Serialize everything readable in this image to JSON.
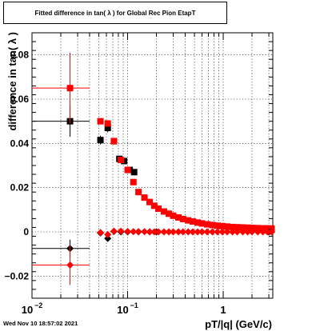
{
  "title": "Fitted difference in tan( λ ) for Global Rec Pion EtapT",
  "timestamp": "Wed Nov 10 18:57:02 2021",
  "chart_data": {
    "type": "scatter",
    "xlabel": "pT/|q| (GeV/c)",
    "ylabel": "difference in tan( λ )",
    "xscale": "log",
    "xlim": [
      0.01,
      3.3
    ],
    "ylim": [
      -0.03,
      0.09
    ],
    "grid": true,
    "x_ticks": [
      {
        "value": 0.01,
        "label": "10",
        "exp": "−2"
      },
      {
        "value": 0.1,
        "label": "10",
        "exp": "−1"
      },
      {
        "value": 1,
        "label": "1",
        "exp": ""
      }
    ],
    "y_ticks": [
      {
        "value": -0.02,
        "label": "−0.02"
      },
      {
        "value": 0,
        "label": "0"
      },
      {
        "value": 0.02,
        "label": "0.02"
      },
      {
        "value": 0.04,
        "label": "0.04"
      },
      {
        "value": 0.06,
        "label": "0.06"
      },
      {
        "value": 0.08,
        "label": "0.08"
      }
    ],
    "series": [
      {
        "color": "#000000",
        "marker": "square",
        "points": [
          {
            "x": 0.025,
            "y": 0.05,
            "xerr": [
              0.01,
              0.04
            ],
            "yerr": 0.007
          },
          {
            "x": 0.052,
            "y": 0.0415,
            "xerr": [
              0.048,
              0.056
            ],
            "yerr": 0.002
          },
          {
            "x": 0.062,
            "y": 0.047,
            "yerr": 0.002
          },
          {
            "x": 0.072,
            "y": 0.041,
            "yerr": 0.0015
          },
          {
            "x": 0.082,
            "y": 0.033
          },
          {
            "x": 0.092,
            "y": 0.032
          },
          {
            "x": 0.105,
            "y": 0.028
          },
          {
            "x": 0.117,
            "y": 0.027
          },
          {
            "x": 3.0,
            "y": 0.001
          },
          {
            "x": 3.2,
            "y": 0.001
          }
        ]
      },
      {
        "color": "#ff0000",
        "marker": "square",
        "points": [
          {
            "x": 0.025,
            "y": 0.065,
            "xerr": [
              0.01,
              0.04
            ],
            "yerr": 0.016
          },
          {
            "x": 0.052,
            "y": 0.05,
            "xerr": [
              0.048,
              0.056
            ]
          },
          {
            "x": 0.062,
            "y": 0.049
          },
          {
            "x": 0.072,
            "y": 0.041
          },
          {
            "x": 0.085,
            "y": 0.0325
          },
          {
            "x": 0.1,
            "y": 0.028
          },
          {
            "x": 0.115,
            "y": 0.0225
          },
          {
            "x": 0.13,
            "y": 0.018
          },
          {
            "x": 0.15,
            "y": 0.0155
          },
          {
            "x": 0.17,
            "y": 0.0135
          },
          {
            "x": 0.19,
            "y": 0.0118
          },
          {
            "x": 0.21,
            "y": 0.0105
          },
          {
            "x": 0.24,
            "y": 0.0092
          },
          {
            "x": 0.27,
            "y": 0.0082
          },
          {
            "x": 0.3,
            "y": 0.0073
          },
          {
            "x": 0.34,
            "y": 0.0065
          },
          {
            "x": 0.38,
            "y": 0.0058
          },
          {
            "x": 0.43,
            "y": 0.0052
          },
          {
            "x": 0.48,
            "y": 0.0047
          },
          {
            "x": 0.54,
            "y": 0.0042
          },
          {
            "x": 0.6,
            "y": 0.0038
          },
          {
            "x": 0.68,
            "y": 0.0034
          },
          {
            "x": 0.77,
            "y": 0.0031
          },
          {
            "x": 0.87,
            "y": 0.0028
          },
          {
            "x": 0.98,
            "y": 0.0026
          },
          {
            "x": 1.1,
            "y": 0.0024
          },
          {
            "x": 1.25,
            "y": 0.0022
          },
          {
            "x": 1.4,
            "y": 0.0021
          },
          {
            "x": 1.6,
            "y": 0.002
          },
          {
            "x": 1.8,
            "y": 0.0019
          },
          {
            "x": 2.0,
            "y": 0.0018
          },
          {
            "x": 2.3,
            "y": 0.0017
          },
          {
            "x": 2.6,
            "y": 0.0016
          },
          {
            "x": 2.9,
            "y": 0.0016
          },
          {
            "x": 3.2,
            "y": 0.0015
          }
        ]
      },
      {
        "color": "#000000",
        "marker": "diamond",
        "points": [
          {
            "x": 0.025,
            "y": -0.0075,
            "xerr": [
              0.01,
              0.04
            ],
            "yerr": 0.004
          },
          {
            "x": 0.052,
            "y": -0.0005
          },
          {
            "x": 0.062,
            "y": -0.003
          },
          {
            "x": 0.072,
            "y": 0.0002
          },
          {
            "x": 0.085,
            "y": 0.0
          },
          {
            "x": 0.1,
            "y": 0.0
          },
          {
            "x": 0.13,
            "y": 0.0
          },
          {
            "x": 0.17,
            "y": 0.0
          },
          {
            "x": 0.2,
            "y": 0.0
          },
          {
            "x": 3.0,
            "y": 0.0
          },
          {
            "x": 3.2,
            "y": 0.0
          }
        ]
      },
      {
        "color": "#ff0000",
        "marker": "diamond",
        "points": [
          {
            "x": 0.025,
            "y": -0.015,
            "xerr": [
              0.01,
              0.04
            ],
            "yerr": 0.009
          },
          {
            "x": 0.052,
            "y": -0.0003,
            "xerr": [
              0.048,
              0.056
            ]
          },
          {
            "x": 0.062,
            "y": -0.0012
          },
          {
            "x": 0.072,
            "y": 0.0003
          },
          {
            "x": 0.085,
            "y": 0.0003
          },
          {
            "x": 0.1,
            "y": 0.0002
          },
          {
            "x": 0.115,
            "y": 0.0001
          },
          {
            "x": 0.13,
            "y": 0.0001
          },
          {
            "x": 0.15,
            "y": 0.0001
          },
          {
            "x": 0.17,
            "y": 0.0
          },
          {
            "x": 0.19,
            "y": 0.0
          },
          {
            "x": 0.21,
            "y": 0.0
          },
          {
            "x": 0.24,
            "y": 0.0
          },
          {
            "x": 0.27,
            "y": 0.0
          },
          {
            "x": 0.3,
            "y": 0.0
          },
          {
            "x": 0.34,
            "y": 0.0
          },
          {
            "x": 0.38,
            "y": 0.0
          },
          {
            "x": 0.43,
            "y": 0.0
          },
          {
            "x": 0.48,
            "y": 0.0
          },
          {
            "x": 0.54,
            "y": 0.0
          },
          {
            "x": 0.6,
            "y": 0.0
          },
          {
            "x": 0.68,
            "y": 0.0
          },
          {
            "x": 0.77,
            "y": 0.0
          },
          {
            "x": 0.87,
            "y": 0.0
          },
          {
            "x": 0.98,
            "y": 0.0
          },
          {
            "x": 1.1,
            "y": 0.0
          },
          {
            "x": 1.25,
            "y": 0.0
          },
          {
            "x": 1.4,
            "y": 0.0
          },
          {
            "x": 1.6,
            "y": 0.0
          },
          {
            "x": 1.8,
            "y": 0.0
          },
          {
            "x": 2.0,
            "y": 0.0
          },
          {
            "x": 2.3,
            "y": 0.0
          },
          {
            "x": 2.6,
            "y": 0.0
          },
          {
            "x": 2.9,
            "y": 0.0
          },
          {
            "x": 3.2,
            "y": 0.0
          }
        ]
      }
    ]
  }
}
